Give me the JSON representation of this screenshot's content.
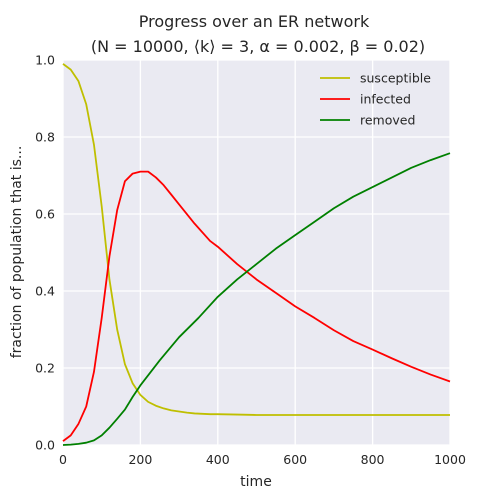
{
  "chart_data": {
    "type": "line",
    "title": "Progress over an ER network",
    "subtitle": "(N = 10000, ⟨k⟩ = 3, α = 0.002, β = 0.02)",
    "xlabel": "time",
    "ylabel": "fraction of population that is...",
    "xlim": [
      0,
      1000
    ],
    "ylim": [
      0,
      1
    ],
    "xticks": [
      0,
      200,
      400,
      600,
      800,
      1000
    ],
    "yticks": [
      0.0,
      0.2,
      0.4,
      0.6,
      0.8,
      1.0
    ],
    "xtick_labels": [
      "0",
      "200",
      "400",
      "600",
      "800",
      "1000"
    ],
    "ytick_labels": [
      "0.0",
      "0.2",
      "0.4",
      "0.6",
      "0.8",
      "1.0"
    ],
    "grid": true,
    "background": "#eaeaf2",
    "legend_position": "top-right",
    "series": [
      {
        "name": "susceptible",
        "color": "#bfbf00",
        "x": [
          0,
          20,
          40,
          60,
          80,
          100,
          120,
          140,
          160,
          180,
          200,
          220,
          240,
          260,
          280,
          300,
          320,
          340,
          360,
          380,
          400,
          450,
          500,
          600,
          700,
          800,
          900,
          1000
        ],
        "y": [
          0.99,
          0.975,
          0.945,
          0.885,
          0.78,
          0.62,
          0.43,
          0.3,
          0.21,
          0.16,
          0.13,
          0.112,
          0.102,
          0.095,
          0.09,
          0.087,
          0.084,
          0.082,
          0.081,
          0.08,
          0.08,
          0.079,
          0.078,
          0.078,
          0.078,
          0.078,
          0.078,
          0.078
        ]
      },
      {
        "name": "infected",
        "color": "#ff0000",
        "x": [
          0,
          20,
          40,
          60,
          80,
          100,
          120,
          140,
          160,
          180,
          200,
          220,
          240,
          260,
          280,
          300,
          340,
          380,
          400,
          450,
          500,
          550,
          600,
          650,
          700,
          750,
          800,
          850,
          900,
          950,
          1000
        ],
        "y": [
          0.01,
          0.025,
          0.055,
          0.1,
          0.19,
          0.33,
          0.49,
          0.61,
          0.685,
          0.705,
          0.71,
          0.71,
          0.695,
          0.675,
          0.65,
          0.625,
          0.575,
          0.53,
          0.515,
          0.47,
          0.43,
          0.395,
          0.36,
          0.33,
          0.298,
          0.27,
          0.248,
          0.225,
          0.203,
          0.183,
          0.165
        ]
      },
      {
        "name": "removed",
        "color": "#008000",
        "x": [
          0,
          20,
          40,
          60,
          80,
          100,
          120,
          140,
          160,
          180,
          200,
          250,
          300,
          350,
          400,
          450,
          500,
          550,
          600,
          650,
          700,
          750,
          800,
          850,
          900,
          950,
          1000
        ],
        "y": [
          0.0,
          0.001,
          0.003,
          0.006,
          0.012,
          0.025,
          0.045,
          0.068,
          0.092,
          0.125,
          0.155,
          0.22,
          0.28,
          0.33,
          0.385,
          0.43,
          0.47,
          0.51,
          0.545,
          0.58,
          0.615,
          0.645,
          0.67,
          0.695,
          0.72,
          0.74,
          0.758
        ]
      }
    ]
  }
}
